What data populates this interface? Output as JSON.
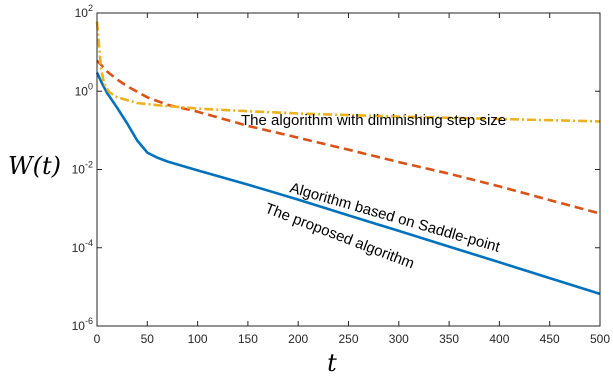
{
  "chart_data": {
    "type": "line",
    "xlabel": "t",
    "ylabel": "W(t)",
    "xlim": [
      0,
      500
    ],
    "ylim": [
      1e-06,
      100
    ],
    "yscale": "log",
    "grid": false,
    "x_ticks": [
      "0",
      "50",
      "100",
      "150",
      "200",
      "250",
      "300",
      "350",
      "400",
      "450",
      "500"
    ],
    "y_ticks": [
      {
        "base": "10",
        "exp": "2"
      },
      {
        "base": "10",
        "exp": "0"
      },
      {
        "base": "10",
        "exp": "-2"
      },
      {
        "base": "10",
        "exp": "-4"
      },
      {
        "base": "10",
        "exp": "-6"
      }
    ],
    "series": [
      {
        "name": "The proposed algorithm",
        "color": "#0072BD",
        "style": "solid",
        "points": [
          [
            0,
            3.0
          ],
          [
            5,
            1.6
          ],
          [
            10,
            0.9
          ],
          [
            20,
            0.38
          ],
          [
            30,
            0.15
          ],
          [
            40,
            0.055
          ],
          [
            50,
            0.027
          ],
          [
            60,
            0.02
          ],
          [
            70,
            0.016
          ],
          [
            100,
            0.0095
          ],
          [
            150,
            0.0041
          ],
          [
            200,
            0.0017
          ],
          [
            250,
            0.00067
          ],
          [
            300,
            0.00027
          ],
          [
            350,
            0.000107
          ],
          [
            400,
            4.25e-05
          ],
          [
            450,
            1.68e-05
          ],
          [
            500,
            6.6e-06
          ]
        ]
      },
      {
        "name": "Algorithm based on Saddle-point",
        "color": "#D95319",
        "style": "dashed",
        "points": [
          [
            0,
            6.0
          ],
          [
            5,
            4.5
          ],
          [
            10,
            3.2
          ],
          [
            20,
            2.0
          ],
          [
            30,
            1.35
          ],
          [
            50,
            0.7
          ],
          [
            70,
            0.45
          ],
          [
            100,
            0.3
          ],
          [
            150,
            0.13
          ],
          [
            200,
            0.065
          ],
          [
            250,
            0.032
          ],
          [
            300,
            0.0155
          ],
          [
            350,
            0.0078
          ],
          [
            400,
            0.0037
          ],
          [
            450,
            0.00165
          ],
          [
            500,
            0.00075
          ]
        ]
      },
      {
        "name": "The algorithm with diminishing step size",
        "color": "#EDB120",
        "style": "dashdot",
        "points": [
          [
            0,
            60
          ],
          [
            2,
            15
          ],
          [
            4,
            4.0
          ],
          [
            7,
            1.6
          ],
          [
            12,
            0.95
          ],
          [
            20,
            0.7
          ],
          [
            40,
            0.5
          ],
          [
            60,
            0.44
          ],
          [
            100,
            0.36
          ],
          [
            150,
            0.31
          ],
          [
            200,
            0.27
          ],
          [
            250,
            0.245
          ],
          [
            300,
            0.225
          ],
          [
            350,
            0.21
          ],
          [
            400,
            0.195
          ],
          [
            450,
            0.182
          ],
          [
            500,
            0.17
          ]
        ]
      }
    ],
    "annotations": [
      {
        "series": 2,
        "text": "The algorithm with diminishing step size"
      },
      {
        "series": 1,
        "text": "Algorithm based on Saddle-point"
      },
      {
        "series": 0,
        "text": "The proposed algorithm"
      }
    ]
  }
}
